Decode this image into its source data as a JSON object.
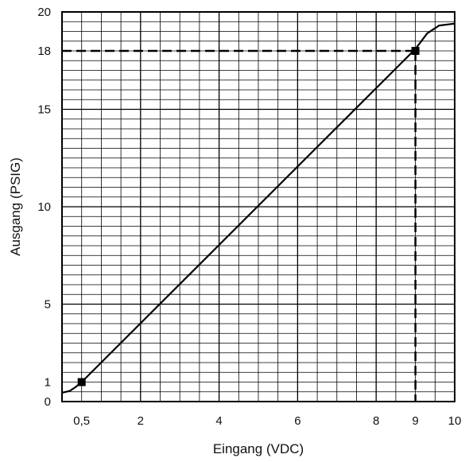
{
  "chart_data": {
    "type": "line",
    "title": "",
    "xlabel": "Eingang (VDC)",
    "ylabel": "Ausgang (PSIG)",
    "xlim": [
      0,
      10
    ],
    "ylim": [
      0,
      20
    ],
    "grid": true,
    "x_tick_labels": [
      {
        "value": 0.5,
        "label": "0,5"
      },
      {
        "value": 2,
        "label": "2"
      },
      {
        "value": 4,
        "label": "4"
      },
      {
        "value": 6,
        "label": "6"
      },
      {
        "value": 8,
        "label": "8"
      },
      {
        "value": 9,
        "label": "9"
      },
      {
        "value": 10,
        "label": "10"
      }
    ],
    "y_tick_labels": [
      {
        "value": 0,
        "label": "0"
      },
      {
        "value": 1,
        "label": "1"
      },
      {
        "value": 5,
        "label": "5"
      },
      {
        "value": 10,
        "label": "10"
      },
      {
        "value": 15,
        "label": "15"
      },
      {
        "value": 18,
        "label": "18"
      },
      {
        "value": 20,
        "label": "20"
      }
    ],
    "series": [
      {
        "style": "solid",
        "x": [
          0.0,
          0.2,
          0.35,
          0.5,
          9.0,
          9.3,
          9.6,
          10.0
        ],
        "y": [
          0.45,
          0.55,
          0.75,
          1.0,
          18.1,
          18.9,
          19.3,
          19.4
        ]
      }
    ],
    "markers": [
      {
        "x": 0.5,
        "y": 1
      },
      {
        "x": 9,
        "y": 18
      }
    ],
    "reference_lines": [
      {
        "style": "dashed",
        "x": [
          0,
          9
        ],
        "y": [
          18,
          18
        ]
      },
      {
        "style": "dashed",
        "x": [
          9,
          9
        ],
        "y": [
          18,
          0
        ]
      }
    ],
    "colors": {
      "line": "#000000",
      "grid": "#000000",
      "background": "#ffffff"
    }
  }
}
